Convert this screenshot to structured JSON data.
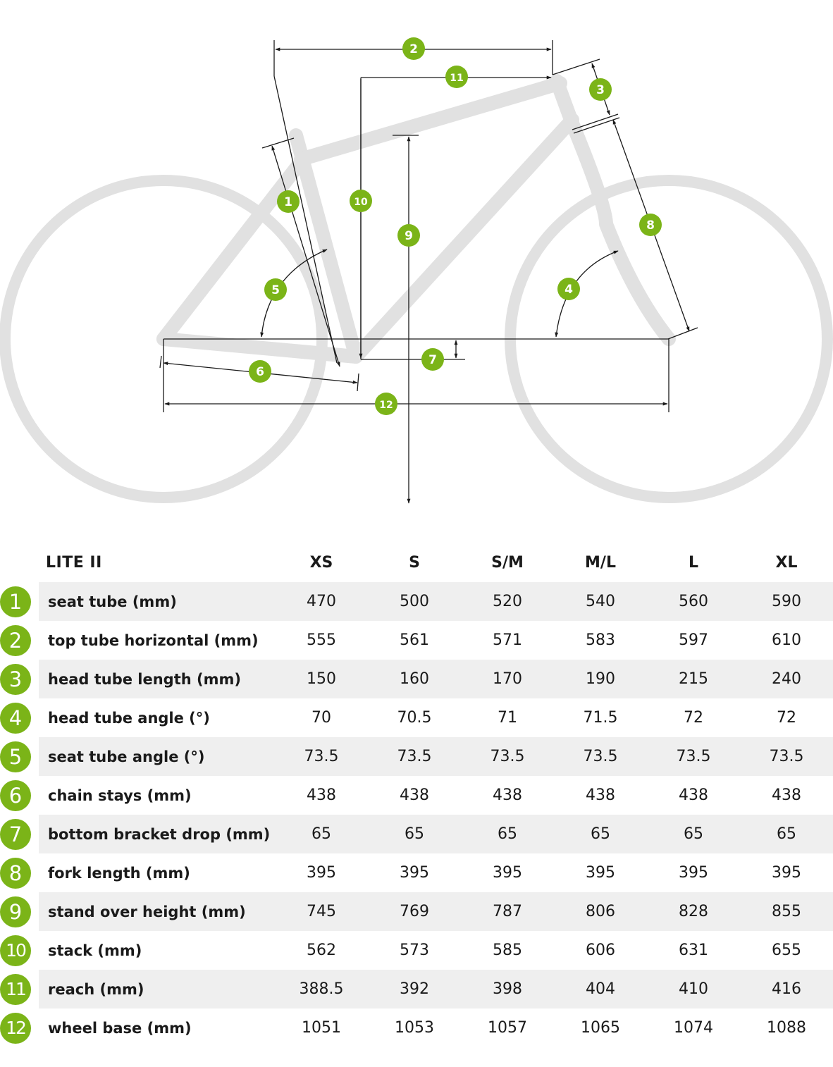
{
  "diagram": {
    "colors": {
      "frame": "#e1e1e1",
      "line": "#1a1a1a",
      "badge": "#7bb418"
    },
    "badges": [
      "1",
      "2",
      "3",
      "4",
      "5",
      "6",
      "7",
      "8",
      "9",
      "10",
      "11",
      "12"
    ]
  },
  "table": {
    "model": "LITE II",
    "sizes": [
      "XS",
      "S",
      "S/M",
      "M/L",
      "L",
      "XL"
    ],
    "rows": [
      {
        "num": "1",
        "label": "seat tube (mm)",
        "values": [
          "470",
          "500",
          "520",
          "540",
          "560",
          "590"
        ]
      },
      {
        "num": "2",
        "label": "top tube horizontal (mm)",
        "values": [
          "555",
          "561",
          "571",
          "583",
          "597",
          "610"
        ]
      },
      {
        "num": "3",
        "label": "head tube length (mm)",
        "values": [
          "150",
          "160",
          "170",
          "190",
          "215",
          "240"
        ]
      },
      {
        "num": "4",
        "label": "head tube angle (°)",
        "values": [
          "70",
          "70.5",
          "71",
          "71.5",
          "72",
          "72"
        ]
      },
      {
        "num": "5",
        "label": "seat tube angle (°)",
        "values": [
          "73.5",
          "73.5",
          "73.5",
          "73.5",
          "73.5",
          "73.5"
        ]
      },
      {
        "num": "6",
        "label": "chain stays (mm)",
        "values": [
          "438",
          "438",
          "438",
          "438",
          "438",
          "438"
        ]
      },
      {
        "num": "7",
        "label": "bottom bracket drop (mm)",
        "values": [
          "65",
          "65",
          "65",
          "65",
          "65",
          "65"
        ]
      },
      {
        "num": "8",
        "label": "fork length (mm)",
        "values": [
          "395",
          "395",
          "395",
          "395",
          "395",
          "395"
        ]
      },
      {
        "num": "9",
        "label": "stand over height (mm)",
        "values": [
          "745",
          "769",
          "787",
          "806",
          "828",
          "855"
        ]
      },
      {
        "num": "10",
        "label": "stack (mm)",
        "values": [
          "562",
          "573",
          "585",
          "606",
          "631",
          "655"
        ]
      },
      {
        "num": "11",
        "label": "reach (mm)",
        "values": [
          "388.5",
          "392",
          "398",
          "404",
          "410",
          "416"
        ]
      },
      {
        "num": "12",
        "label": "wheel base (mm)",
        "values": [
          "1051",
          "1053",
          "1057",
          "1065",
          "1074",
          "1088"
        ]
      }
    ]
  }
}
